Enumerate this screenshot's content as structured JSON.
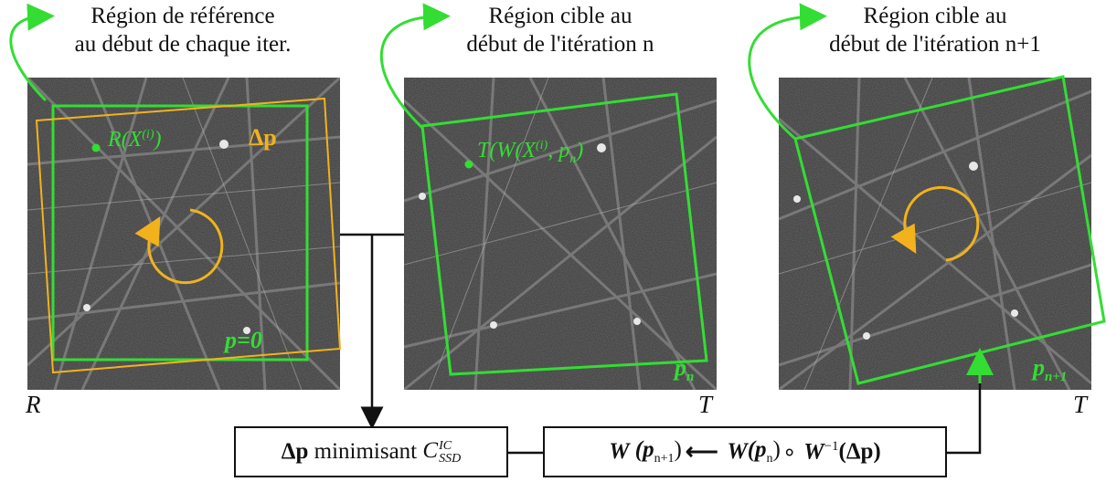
{
  "captions": {
    "left": [
      "Région de référence",
      "au début de chaque iter."
    ],
    "middle": [
      "Région cible au",
      "début de l'itération n"
    ],
    "right": [
      "Région cible au",
      "début de l'itération n+1"
    ]
  },
  "panels": {
    "left": {
      "label": "R",
      "point_label": "R(X",
      "point_sup": "(i)",
      "point_close": ")",
      "delta_label": "Δp",
      "p_label": "p=0"
    },
    "middle": {
      "label": "T",
      "point_label": "T(W(X",
      "point_sup": "(i)",
      "point_rest": ", p",
      "point_sub": "n",
      "point_close": ")",
      "p_label": "p",
      "p_sub": "n"
    },
    "right": {
      "label": "T",
      "p_label": "p",
      "p_sub": "n+1"
    }
  },
  "boxes": {
    "minimize": {
      "delta": "Δp",
      "text": " minimisant ",
      "c": "C",
      "c_sup": "IC",
      "c_sub": "SSD"
    },
    "update": {
      "w1": "W",
      "p1": " (p",
      "p1_sub": "n+1",
      "p1_close": ")",
      "arrow": "⟵",
      "w2": " W",
      "p2": "(p",
      "p2_sub": "n",
      "p2_close": ")",
      "compose": "∘",
      "w3": " W",
      "w3_sup": "−1",
      "delta": "(Δp)"
    }
  },
  "colors": {
    "green": "#33dd33",
    "orange": "#f2b21c",
    "black": "#111111"
  }
}
